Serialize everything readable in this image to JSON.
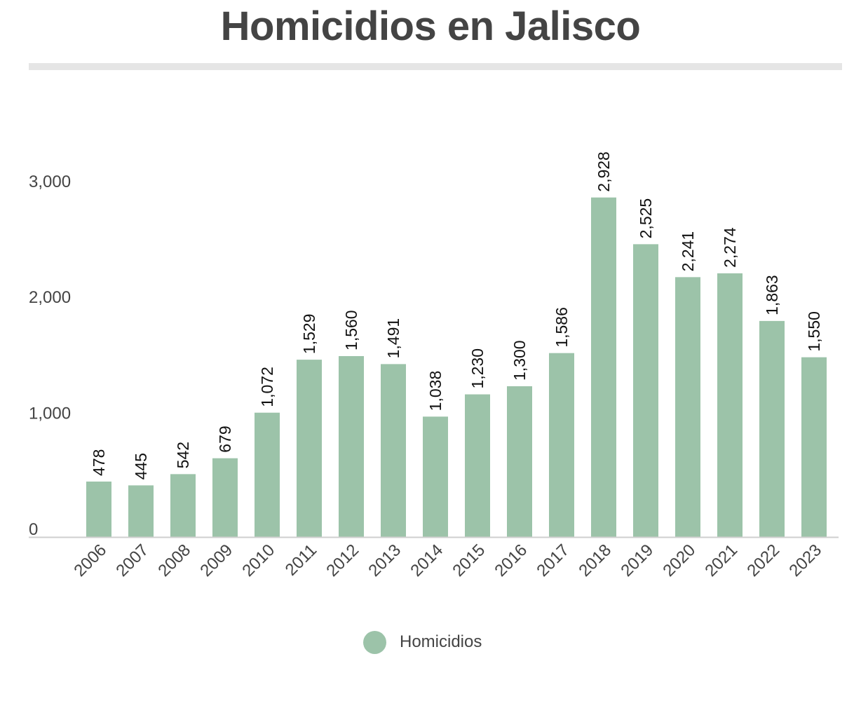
{
  "title": "Homicidios en Jalisco",
  "chart_data": {
    "type": "bar",
    "title": "Homicidios en Jalisco",
    "xlabel": "",
    "ylabel": "",
    "categories": [
      "2006",
      "2007",
      "2008",
      "2009",
      "2010",
      "2011",
      "2012",
      "2013",
      "2014",
      "2015",
      "2016",
      "2017",
      "2018",
      "2019",
      "2020",
      "2021",
      "2022",
      "2023"
    ],
    "series": [
      {
        "name": "Homicidios",
        "values": [
          478,
          445,
          542,
          679,
          1072,
          1529,
          1560,
          1491,
          1038,
          1230,
          1300,
          1586,
          2928,
          2525,
          2241,
          2274,
          1863,
          1550
        ],
        "value_labels": [
          "478",
          "445",
          "542",
          "679",
          "1,072",
          "1,529",
          "1,560",
          "1,491",
          "1,038",
          "1,230",
          "1,300",
          "1,586",
          "2,928",
          "2,525",
          "2,241",
          "2,274",
          "1,863",
          "1,550"
        ],
        "color": "#9cc3a9"
      }
    ],
    "ylim": [
      0,
      3100
    ],
    "yticks": [
      0,
      1000,
      2000,
      3000
    ],
    "ytick_labels": [
      "0",
      "1,000",
      "2,000",
      "3,000"
    ],
    "grid": false,
    "legend_position": "bottom-center",
    "colors": {
      "bar": "#9cc3a9",
      "axis": "#cfcfcf",
      "title": "#444444",
      "tick": "#444444",
      "value_label": "#111111"
    }
  }
}
